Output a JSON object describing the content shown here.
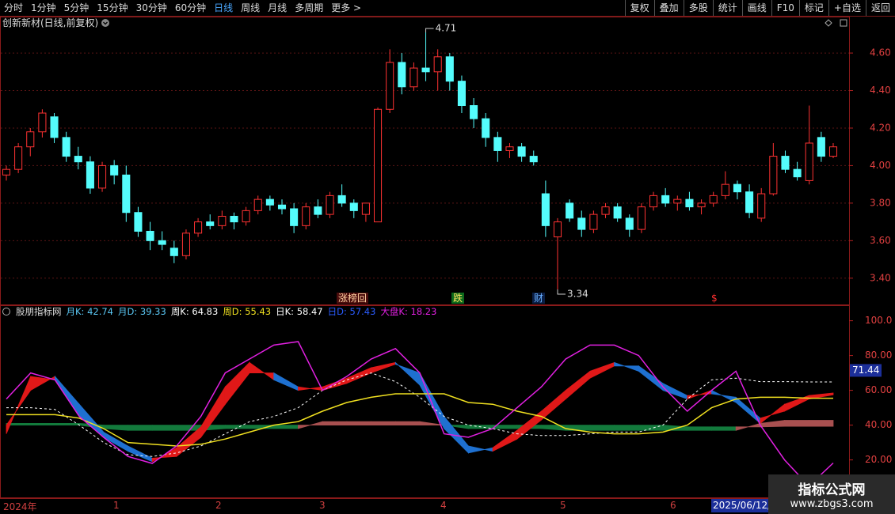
{
  "toolbar": {
    "left": [
      "分时",
      "1分钟",
      "5分钟",
      "15分钟",
      "30分钟",
      "60分钟",
      "日线",
      "周线",
      "月线",
      "多周期",
      "更多 >"
    ],
    "active": "日线",
    "right": [
      "复权",
      "叠加",
      "多股",
      "统计",
      "画线",
      "F10",
      "标记",
      "+自选",
      "返回"
    ]
  },
  "chart_data": [
    {
      "type": "candlestick",
      "title": "创新新材(日线,前复权)",
      "up_color": "#ff3232",
      "down_color": "#54fcfc",
      "ylim": [
        3.26,
        4.79
      ],
      "yticks": [
        {
          "value": 3.4,
          "label": "3.40"
        },
        {
          "value": 3.6,
          "label": "3.60"
        },
        {
          "value": 3.8,
          "label": "3.80"
        },
        {
          "value": 4.0,
          "label": "4.00"
        },
        {
          "value": 4.2,
          "label": "4.20"
        },
        {
          "value": 4.4,
          "label": "4.40"
        },
        {
          "value": 4.6,
          "label": "4.60"
        }
      ],
      "grid": true,
      "max_label": "4.71",
      "min_label": "3.34",
      "events": [
        "涨榜回",
        "跌",
        "财",
        "$"
      ],
      "ohlc": [
        [
          3.95,
          4.0,
          3.92,
          3.98
        ],
        [
          3.98,
          4.12,
          3.96,
          4.1
        ],
        [
          4.1,
          4.2,
          4.05,
          4.18
        ],
        [
          4.18,
          4.3,
          4.15,
          4.28
        ],
        [
          4.26,
          4.28,
          4.12,
          4.15
        ],
        [
          4.15,
          4.18,
          4.02,
          4.05
        ],
        [
          4.05,
          4.1,
          3.98,
          4.02
        ],
        [
          4.02,
          4.05,
          3.85,
          3.88
        ],
        [
          3.88,
          4.02,
          3.86,
          4.0
        ],
        [
          4.0,
          4.03,
          3.9,
          3.95
        ],
        [
          3.95,
          4.0,
          3.7,
          3.75
        ],
        [
          3.75,
          3.78,
          3.62,
          3.65
        ],
        [
          3.65,
          3.7,
          3.55,
          3.6
        ],
        [
          3.6,
          3.65,
          3.55,
          3.58
        ],
        [
          3.56,
          3.6,
          3.48,
          3.52
        ],
        [
          3.52,
          3.66,
          3.5,
          3.64
        ],
        [
          3.64,
          3.72,
          3.62,
          3.7
        ],
        [
          3.7,
          3.74,
          3.66,
          3.68
        ],
        [
          3.68,
          3.76,
          3.66,
          3.73
        ],
        [
          3.73,
          3.75,
          3.66,
          3.7
        ],
        [
          3.7,
          3.78,
          3.68,
          3.76
        ],
        [
          3.76,
          3.84,
          3.74,
          3.82
        ],
        [
          3.82,
          3.84,
          3.76,
          3.79
        ],
        [
          3.79,
          3.82,
          3.74,
          3.77
        ],
        [
          3.77,
          3.8,
          3.64,
          3.68
        ],
        [
          3.68,
          3.8,
          3.66,
          3.78
        ],
        [
          3.78,
          3.82,
          3.72,
          3.74
        ],
        [
          3.74,
          3.86,
          3.72,
          3.84
        ],
        [
          3.84,
          3.9,
          3.78,
          3.8
        ],
        [
          3.8,
          3.82,
          3.72,
          3.76
        ],
        [
          3.74,
          3.8,
          3.7,
          3.8
        ],
        [
          3.7,
          4.31,
          3.7,
          4.3
        ],
        [
          4.3,
          4.62,
          4.28,
          4.55
        ],
        [
          4.55,
          4.6,
          4.38,
          4.42
        ],
        [
          4.42,
          4.55,
          4.4,
          4.52
        ],
        [
          4.52,
          4.71,
          4.45,
          4.5
        ],
        [
          4.5,
          4.62,
          4.4,
          4.58
        ],
        [
          4.58,
          4.6,
          4.4,
          4.45
        ],
        [
          4.45,
          4.48,
          4.28,
          4.32
        ],
        [
          4.32,
          4.36,
          4.2,
          4.25
        ],
        [
          4.25,
          4.28,
          4.1,
          4.15
        ],
        [
          4.15,
          4.18,
          4.02,
          4.08
        ],
        [
          4.08,
          4.12,
          4.04,
          4.1
        ],
        [
          4.1,
          4.12,
          4.02,
          4.05
        ],
        [
          4.05,
          4.08,
          4.0,
          4.02
        ],
        [
          3.85,
          3.92,
          3.62,
          3.68
        ],
        [
          3.62,
          3.72,
          3.34,
          3.7
        ],
        [
          3.8,
          3.82,
          3.7,
          3.72
        ],
        [
          3.72,
          3.76,
          3.62,
          3.66
        ],
        [
          3.66,
          3.76,
          3.64,
          3.74
        ],
        [
          3.74,
          3.8,
          3.72,
          3.78
        ],
        [
          3.78,
          3.8,
          3.7,
          3.72
        ],
        [
          3.72,
          3.74,
          3.62,
          3.66
        ],
        [
          3.66,
          3.8,
          3.64,
          3.78
        ],
        [
          3.78,
          3.86,
          3.76,
          3.84
        ],
        [
          3.84,
          3.88,
          3.78,
          3.8
        ],
        [
          3.8,
          3.84,
          3.76,
          3.82
        ],
        [
          3.82,
          3.86,
          3.76,
          3.78
        ],
        [
          3.78,
          3.82,
          3.74,
          3.8
        ],
        [
          3.8,
          3.86,
          3.78,
          3.84
        ],
        [
          3.84,
          3.97,
          3.82,
          3.9
        ],
        [
          3.9,
          3.92,
          3.82,
          3.86
        ],
        [
          3.86,
          3.9,
          3.72,
          3.75
        ],
        [
          3.72,
          3.88,
          3.7,
          3.85
        ],
        [
          3.85,
          4.12,
          3.84,
          4.05
        ],
        [
          4.05,
          4.08,
          3.96,
          3.98
        ],
        [
          3.98,
          4.02,
          3.92,
          3.94
        ],
        [
          3.92,
          4.32,
          3.9,
          4.12
        ],
        [
          4.15,
          4.18,
          4.02,
          4.05
        ],
        [
          4.05,
          4.12,
          4.04,
          4.1
        ]
      ]
    },
    {
      "type": "indicator",
      "title": "股朋指标网",
      "ylim": [
        -2,
        108
      ],
      "yticks": [
        {
          "value": 20,
          "label": "20.00"
        },
        {
          "value": 40,
          "label": "40.00"
        },
        {
          "value": 60,
          "label": "60.00"
        },
        {
          "value": 80,
          "label": "80.00"
        },
        {
          "value": 100,
          "label": "100.0"
        }
      ],
      "grid": false,
      "cursor_value": 71.44,
      "series": [
        {
          "name": "月K: 42.74",
          "color": "#5bc8f5",
          "style": "band",
          "up_color": "#a85050",
          "down_color": "#137a3c",
          "values": [
            40,
            40,
            40,
            40,
            38,
            37,
            37,
            37,
            37,
            38,
            38,
            38,
            38,
            42,
            42,
            42,
            42,
            42,
            40,
            38,
            38,
            38,
            38,
            37,
            37,
            37,
            37,
            37,
            37,
            37,
            37,
            41,
            42.74,
            42.74,
            42.74
          ]
        },
        {
          "name": "月D: 39.33",
          "color": "#5bc8f5",
          "style": "band",
          "values": [
            41,
            41,
            41,
            41,
            40,
            40,
            40,
            40,
            40,
            40,
            40,
            40,
            40,
            40,
            40,
            40,
            40,
            40,
            40,
            40,
            40,
            40,
            40,
            40,
            40,
            40,
            40,
            40,
            39,
            39,
            39,
            39,
            39.33,
            39.33,
            39.33
          ]
        },
        {
          "name": "周K: 64.83",
          "color": "#ffffff",
          "style": "dashed",
          "values": [
            50,
            50,
            49,
            40,
            30,
            23,
            22,
            24,
            28,
            35,
            42,
            45,
            50,
            60,
            66,
            70,
            65,
            56,
            45,
            40,
            38,
            35,
            34,
            34,
            35,
            36,
            36,
            40,
            55,
            66,
            67,
            65,
            65,
            64.83,
            64.83
          ]
        },
        {
          "name": "周D: 55.43",
          "color": "#f0e020",
          "style": "line",
          "values": [
            46,
            46,
            46,
            44,
            38,
            30,
            29,
            28,
            29,
            32,
            36,
            40,
            42,
            48,
            53,
            56,
            58,
            58,
            58,
            53,
            52,
            48,
            45,
            38,
            36,
            35,
            35,
            36,
            40,
            50,
            55,
            56,
            56,
            55.5,
            55.43
          ]
        },
        {
          "name": "日K: 58.47",
          "color": "#ffffff",
          "style": "band",
          "up_color": "#e01818",
          "down_color": "#1e70d0",
          "values": [
            35,
            68,
            66,
            45,
            33,
            25,
            19,
            27,
            39,
            62,
            76,
            66,
            60,
            62,
            67,
            73,
            76,
            63,
            38,
            24,
            27,
            37,
            48,
            60,
            71,
            76,
            71,
            60,
            55,
            60,
            53,
            41,
            52,
            57,
            58.47
          ]
        },
        {
          "name": "日D: 57.43",
          "color": "#2a5cff",
          "style": "band",
          "values": [
            40,
            60,
            68,
            52,
            36,
            28,
            21,
            22,
            33,
            52,
            70,
            70,
            62,
            60,
            64,
            70,
            75,
            70,
            45,
            28,
            25,
            32,
            43,
            55,
            67,
            74,
            74,
            64,
            57,
            58,
            56,
            44,
            48,
            55,
            57.43
          ]
        },
        {
          "name": "大盘K: 18.23",
          "color": "#e020e0",
          "style": "line",
          "values": [
            55,
            70,
            66,
            45,
            33,
            22,
            18,
            28,
            45,
            70,
            78,
            86,
            88,
            60,
            68,
            78,
            84,
            70,
            35,
            33,
            38,
            50,
            62,
            78,
            86,
            86,
            80,
            62,
            48,
            60,
            71,
            40,
            20,
            5,
            18.23
          ]
        }
      ]
    }
  ],
  "x_axis": {
    "labels": [
      "2024年",
      "1",
      "2",
      "3",
      "4",
      "5",
      "6"
    ],
    "cursor_date": "2025/06/12/四"
  },
  "watermark": {
    "title": "指标公式网",
    "url": "www.zbgs3.com"
  }
}
